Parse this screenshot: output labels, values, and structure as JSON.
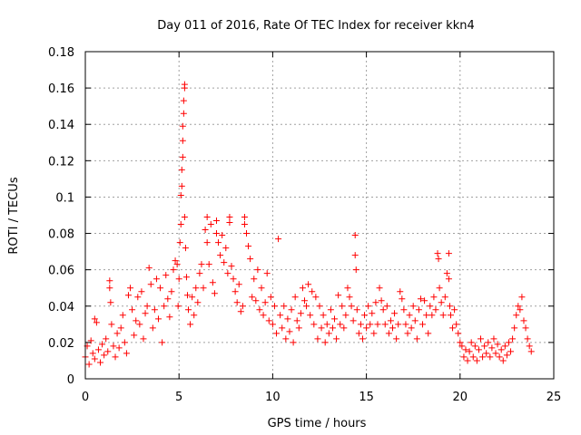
{
  "chart_data": {
    "type": "scatter",
    "title": "Day 011 of 2016, Rate Of TEC Index for receiver kkn4",
    "xlabel": "GPS time / hours",
    "ylabel": "ROTI / TECUs",
    "xlim": [
      0,
      25
    ],
    "ylim": [
      0,
      0.18
    ],
    "xticks": [
      0,
      5,
      10,
      15,
      20,
      25
    ],
    "xtick_labels": [
      "0",
      "5",
      "10",
      "15",
      "20",
      "25"
    ],
    "yticks": [
      0,
      0.02,
      0.04,
      0.06,
      0.08,
      0.1,
      0.12,
      0.14,
      0.16,
      0.18
    ],
    "ytick_labels": [
      "0",
      "0.02",
      "0.04",
      "0.06",
      "0.08",
      "0.1",
      "0.12",
      "0.14",
      "0.16",
      "0.18"
    ],
    "grid": true,
    "marker": "+",
    "color": "#ff0000",
    "series": [
      {
        "name": "ROTI",
        "points": [
          [
            0.0,
            0.012
          ],
          [
            0.1,
            0.018
          ],
          [
            0.2,
            0.008
          ],
          [
            0.3,
            0.021
          ],
          [
            0.4,
            0.014
          ],
          [
            0.5,
            0.011
          ],
          [
            0.5,
            0.033
          ],
          [
            0.6,
            0.031
          ],
          [
            0.7,
            0.016
          ],
          [
            0.8,
            0.009
          ],
          [
            0.9,
            0.019
          ],
          [
            1.0,
            0.013
          ],
          [
            1.1,
            0.022
          ],
          [
            1.2,
            0.015
          ],
          [
            1.3,
            0.054
          ],
          [
            1.3,
            0.05
          ],
          [
            1.35,
            0.042
          ],
          [
            1.4,
            0.03
          ],
          [
            1.5,
            0.018
          ],
          [
            1.6,
            0.012
          ],
          [
            1.7,
            0.025
          ],
          [
            1.8,
            0.017
          ],
          [
            1.9,
            0.028
          ],
          [
            2.0,
            0.035
          ],
          [
            2.1,
            0.02
          ],
          [
            2.2,
            0.014
          ],
          [
            2.3,
            0.046
          ],
          [
            2.4,
            0.05
          ],
          [
            2.5,
            0.038
          ],
          [
            2.6,
            0.024
          ],
          [
            2.7,
            0.032
          ],
          [
            2.8,
            0.045
          ],
          [
            2.9,
            0.03
          ],
          [
            3.0,
            0.048
          ],
          [
            3.1,
            0.022
          ],
          [
            3.2,
            0.036
          ],
          [
            3.3,
            0.04
          ],
          [
            3.4,
            0.061
          ],
          [
            3.5,
            0.052
          ],
          [
            3.6,
            0.028
          ],
          [
            3.7,
            0.038
          ],
          [
            3.8,
            0.055
          ],
          [
            3.9,
            0.033
          ],
          [
            4.0,
            0.05
          ],
          [
            4.1,
            0.02
          ],
          [
            4.2,
            0.04
          ],
          [
            4.3,
            0.057
          ],
          [
            4.4,
            0.044
          ],
          [
            4.5,
            0.034
          ],
          [
            4.6,
            0.048
          ],
          [
            4.7,
            0.06
          ],
          [
            4.8,
            0.065
          ],
          [
            4.9,
            0.063
          ],
          [
            4.95,
            0.04
          ],
          [
            5.0,
            0.055
          ],
          [
            5.05,
            0.075
          ],
          [
            5.1,
            0.085
          ],
          [
            5.1,
            0.101
          ],
          [
            5.15,
            0.106
          ],
          [
            5.15,
            0.115
          ],
          [
            5.2,
            0.122
          ],
          [
            5.2,
            0.131
          ],
          [
            5.2,
            0.139
          ],
          [
            5.25,
            0.146
          ],
          [
            5.25,
            0.153
          ],
          [
            5.3,
            0.16
          ],
          [
            5.3,
            0.162
          ],
          [
            5.3,
            0.089
          ],
          [
            5.35,
            0.072
          ],
          [
            5.4,
            0.056
          ],
          [
            5.45,
            0.046
          ],
          [
            5.5,
            0.038
          ],
          [
            5.6,
            0.03
          ],
          [
            5.7,
            0.045
          ],
          [
            5.8,
            0.035
          ],
          [
            5.9,
            0.05
          ],
          [
            6.0,
            0.042
          ],
          [
            6.1,
            0.058
          ],
          [
            6.2,
            0.063
          ],
          [
            6.3,
            0.05
          ],
          [
            6.4,
            0.082
          ],
          [
            6.5,
            0.089
          ],
          [
            6.5,
            0.075
          ],
          [
            6.6,
            0.063
          ],
          [
            6.7,
            0.085
          ],
          [
            6.8,
            0.053
          ],
          [
            6.9,
            0.047
          ],
          [
            7.0,
            0.087
          ],
          [
            7.0,
            0.08
          ],
          [
            7.1,
            0.075
          ],
          [
            7.2,
            0.068
          ],
          [
            7.3,
            0.079
          ],
          [
            7.4,
            0.064
          ],
          [
            7.5,
            0.072
          ],
          [
            7.6,
            0.058
          ],
          [
            7.7,
            0.089
          ],
          [
            7.7,
            0.086
          ],
          [
            7.8,
            0.062
          ],
          [
            7.9,
            0.055
          ],
          [
            8.0,
            0.048
          ],
          [
            8.1,
            0.042
          ],
          [
            8.2,
            0.052
          ],
          [
            8.3,
            0.037
          ],
          [
            8.4,
            0.04
          ],
          [
            8.5,
            0.089
          ],
          [
            8.5,
            0.085
          ],
          [
            8.6,
            0.08
          ],
          [
            8.7,
            0.073
          ],
          [
            8.8,
            0.066
          ],
          [
            8.9,
            0.045
          ],
          [
            9.0,
            0.055
          ],
          [
            9.1,
            0.043
          ],
          [
            9.2,
            0.06
          ],
          [
            9.3,
            0.038
          ],
          [
            9.4,
            0.05
          ],
          [
            9.5,
            0.035
          ],
          [
            9.6,
            0.042
          ],
          [
            9.7,
            0.058
          ],
          [
            9.8,
            0.032
          ],
          [
            9.9,
            0.045
          ],
          [
            10.0,
            0.03
          ],
          [
            10.1,
            0.04
          ],
          [
            10.2,
            0.025
          ],
          [
            10.3,
            0.077
          ],
          [
            10.4,
            0.035
          ],
          [
            10.5,
            0.028
          ],
          [
            10.6,
            0.04
          ],
          [
            10.7,
            0.022
          ],
          [
            10.8,
            0.033
          ],
          [
            10.9,
            0.026
          ],
          [
            11.0,
            0.038
          ],
          [
            11.1,
            0.02
          ],
          [
            11.2,
            0.045
          ],
          [
            11.3,
            0.032
          ],
          [
            11.4,
            0.028
          ],
          [
            11.5,
            0.036
          ],
          [
            11.6,
            0.05
          ],
          [
            11.7,
            0.043
          ],
          [
            11.8,
            0.04
          ],
          [
            11.9,
            0.052
          ],
          [
            12.0,
            0.035
          ],
          [
            12.1,
            0.048
          ],
          [
            12.2,
            0.03
          ],
          [
            12.3,
            0.045
          ],
          [
            12.4,
            0.022
          ],
          [
            12.5,
            0.04
          ],
          [
            12.6,
            0.028
          ],
          [
            12.7,
            0.035
          ],
          [
            12.8,
            0.02
          ],
          [
            12.9,
            0.03
          ],
          [
            13.0,
            0.025
          ],
          [
            13.1,
            0.038
          ],
          [
            13.2,
            0.028
          ],
          [
            13.3,
            0.033
          ],
          [
            13.4,
            0.022
          ],
          [
            13.5,
            0.046
          ],
          [
            13.6,
            0.03
          ],
          [
            13.7,
            0.04
          ],
          [
            13.8,
            0.028
          ],
          [
            13.9,
            0.035
          ],
          [
            14.0,
            0.05
          ],
          [
            14.1,
            0.045
          ],
          [
            14.2,
            0.04
          ],
          [
            14.3,
            0.032
          ],
          [
            14.4,
            0.079
          ],
          [
            14.4,
            0.068
          ],
          [
            14.45,
            0.06
          ],
          [
            14.5,
            0.038
          ],
          [
            14.6,
            0.025
          ],
          [
            14.7,
            0.03
          ],
          [
            14.8,
            0.022
          ],
          [
            14.9,
            0.035
          ],
          [
            15.0,
            0.028
          ],
          [
            15.1,
            0.04
          ],
          [
            15.2,
            0.03
          ],
          [
            15.3,
            0.036
          ],
          [
            15.4,
            0.025
          ],
          [
            15.5,
            0.042
          ],
          [
            15.6,
            0.03
          ],
          [
            15.7,
            0.05
          ],
          [
            15.8,
            0.043
          ],
          [
            15.9,
            0.038
          ],
          [
            16.0,
            0.03
          ],
          [
            16.1,
            0.04
          ],
          [
            16.2,
            0.025
          ],
          [
            16.3,
            0.032
          ],
          [
            16.4,
            0.028
          ],
          [
            16.5,
            0.036
          ],
          [
            16.6,
            0.022
          ],
          [
            16.7,
            0.03
          ],
          [
            16.8,
            0.048
          ],
          [
            16.9,
            0.044
          ],
          [
            17.0,
            0.038
          ],
          [
            17.1,
            0.03
          ],
          [
            17.2,
            0.025
          ],
          [
            17.3,
            0.035
          ],
          [
            17.4,
            0.028
          ],
          [
            17.5,
            0.04
          ],
          [
            17.6,
            0.032
          ],
          [
            17.7,
            0.022
          ],
          [
            17.8,
            0.038
          ],
          [
            17.9,
            0.044
          ],
          [
            18.0,
            0.03
          ],
          [
            18.1,
            0.043
          ],
          [
            18.2,
            0.035
          ],
          [
            18.3,
            0.025
          ],
          [
            18.4,
            0.04
          ],
          [
            18.5,
            0.035
          ],
          [
            18.6,
            0.045
          ],
          [
            18.7,
            0.038
          ],
          [
            18.8,
            0.069
          ],
          [
            18.85,
            0.066
          ],
          [
            18.9,
            0.05
          ],
          [
            19.0,
            0.042
          ],
          [
            19.1,
            0.035
          ],
          [
            19.2,
            0.045
          ],
          [
            19.3,
            0.058
          ],
          [
            19.4,
            0.069
          ],
          [
            19.4,
            0.055
          ],
          [
            19.45,
            0.04
          ],
          [
            19.5,
            0.035
          ],
          [
            19.6,
            0.028
          ],
          [
            19.7,
            0.038
          ],
          [
            19.8,
            0.03
          ],
          [
            19.9,
            0.025
          ],
          [
            20.0,
            0.02
          ],
          [
            20.1,
            0.018
          ],
          [
            20.2,
            0.012
          ],
          [
            20.3,
            0.016
          ],
          [
            20.4,
            0.01
          ],
          [
            20.5,
            0.015
          ],
          [
            20.6,
            0.02
          ],
          [
            20.7,
            0.012
          ],
          [
            20.8,
            0.018
          ],
          [
            20.9,
            0.01
          ],
          [
            21.0,
            0.016
          ],
          [
            21.1,
            0.022
          ],
          [
            21.2,
            0.012
          ],
          [
            21.3,
            0.018
          ],
          [
            21.4,
            0.014
          ],
          [
            21.5,
            0.02
          ],
          [
            21.6,
            0.012
          ],
          [
            21.7,
            0.017
          ],
          [
            21.8,
            0.022
          ],
          [
            21.9,
            0.014
          ],
          [
            22.0,
            0.019
          ],
          [
            22.1,
            0.012
          ],
          [
            22.2,
            0.016
          ],
          [
            22.3,
            0.01
          ],
          [
            22.4,
            0.018
          ],
          [
            22.5,
            0.013
          ],
          [
            22.6,
            0.02
          ],
          [
            22.7,
            0.015
          ],
          [
            22.8,
            0.022
          ],
          [
            22.9,
            0.028
          ],
          [
            23.0,
            0.035
          ],
          [
            23.1,
            0.04
          ],
          [
            23.2,
            0.038
          ],
          [
            23.3,
            0.045
          ],
          [
            23.4,
            0.032
          ],
          [
            23.5,
            0.028
          ],
          [
            23.6,
            0.022
          ],
          [
            23.7,
            0.018
          ],
          [
            23.8,
            0.015
          ]
        ]
      }
    ]
  }
}
